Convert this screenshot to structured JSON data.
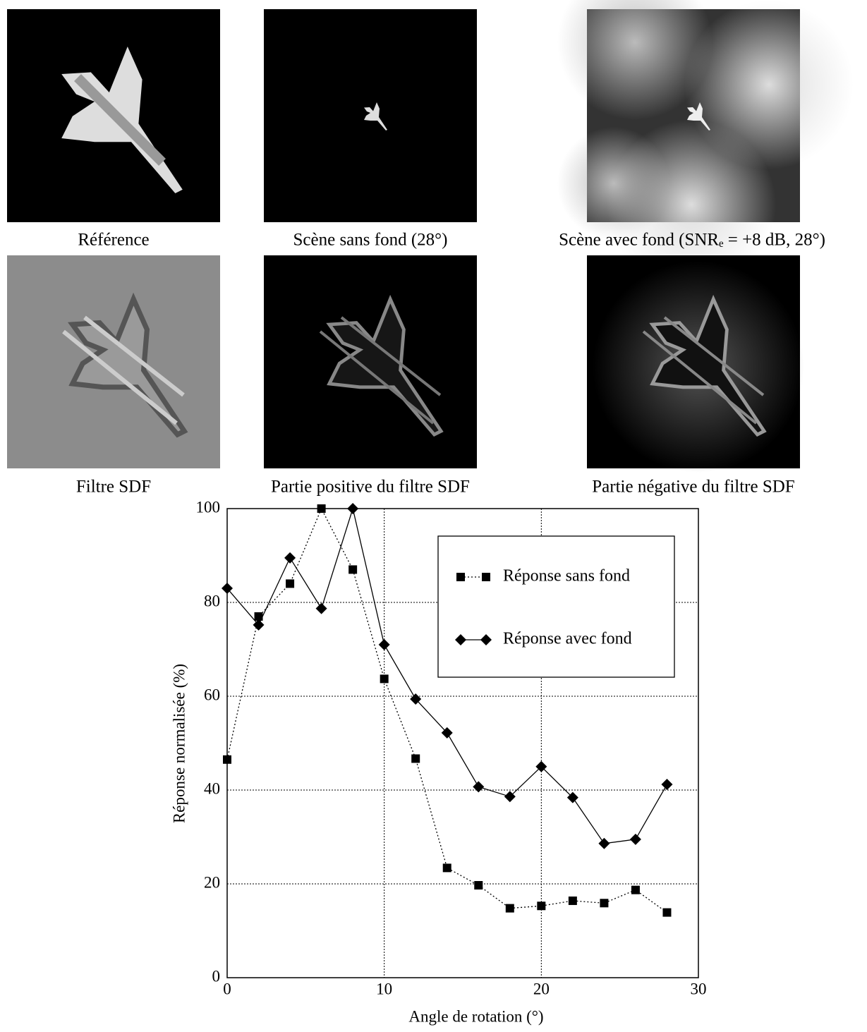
{
  "panels": [
    {
      "caption": "Référence"
    },
    {
      "caption": "Scène sans fond (28°)"
    },
    {
      "caption": "Scène avec fond (SNRₑ = +8 dB, 28°)"
    },
    {
      "caption": "Filtre SDF"
    },
    {
      "caption": "Partie positive du filtre SDF"
    },
    {
      "caption": "Partie négative du filtre SDF"
    }
  ],
  "chart_data": {
    "type": "line",
    "x_label": "Angle de rotation (°)",
    "y_label": "Réponse normalisée (%)",
    "x": [
      0,
      2,
      4,
      6,
      8,
      10,
      12,
      14,
      16,
      18,
      20,
      22,
      24,
      26,
      28
    ],
    "series": [
      {
        "name": "Réponse sans fond",
        "color": "#000000",
        "linestyle": "dotted",
        "marker": "square",
        "values": [
          46.5,
          77,
          84,
          100,
          87,
          63.7,
          46.7,
          23.4,
          19.7,
          14.8,
          15.3,
          16.4,
          15.9,
          18.7,
          13.9
        ]
      },
      {
        "name": "Réponse avec fond",
        "color": "#000000",
        "linestyle": "solid",
        "marker": "diamond",
        "values": [
          83,
          75.2,
          89.5,
          78.7,
          100,
          71,
          59.4,
          52.2,
          40.7,
          38.6,
          45,
          38.4,
          28.6,
          29.5,
          41.2
        ]
      }
    ],
    "xlim": [
      0,
      30
    ],
    "ylim": [
      0,
      100
    ],
    "xticks": [
      0,
      10,
      20,
      30
    ],
    "yticks": [
      0,
      20,
      40,
      60,
      80,
      100
    ],
    "grid": true,
    "legend": "upper right"
  }
}
